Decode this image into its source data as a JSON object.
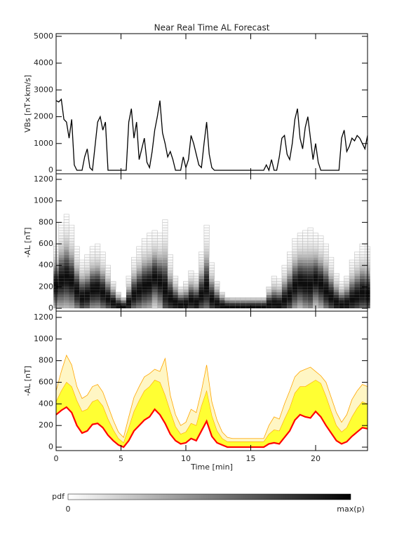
{
  "chart_data": [
    {
      "type": "line",
      "title": "Near Real Time AL Forecast",
      "ylabel": "VBs [nT×km/s]",
      "color": "#000000",
      "xlim": [
        0,
        24
      ],
      "xticks": [
        0,
        5,
        10,
        15,
        20
      ],
      "ylim": [
        -130,
        5100
      ],
      "yticks": [
        0,
        1000,
        2000,
        3000,
        4000,
        5000
      ],
      "x": [
        0,
        0.2,
        0.4,
        0.6,
        0.8,
        1,
        1.2,
        1.4,
        1.6,
        1.8,
        2,
        2.2,
        2.4,
        2.6,
        2.8,
        3,
        3.2,
        3.4,
        3.6,
        3.8,
        4,
        4.2,
        4.4,
        4.6,
        4.8,
        5,
        5.2,
        5.4,
        5.6,
        5.8,
        6,
        6.2,
        6.4,
        6.6,
        6.8,
        7,
        7.2,
        7.4,
        7.6,
        7.8,
        8,
        8.2,
        8.4,
        8.6,
        8.8,
        9,
        9.2,
        9.4,
        9.6,
        9.8,
        10,
        10.2,
        10.4,
        10.6,
        10.8,
        11,
        11.2,
        11.4,
        11.6,
        11.8,
        12,
        12.2,
        12.4,
        12.6,
        12.8,
        13,
        13.2,
        13.4,
        13.6,
        13.8,
        14,
        14.2,
        14.4,
        14.6,
        14.8,
        15,
        15.2,
        15.4,
        15.6,
        15.8,
        16,
        16.2,
        16.4,
        16.6,
        16.8,
        17,
        17.2,
        17.4,
        17.6,
        17.8,
        18,
        18.2,
        18.4,
        18.6,
        18.8,
        19,
        19.2,
        19.4,
        19.6,
        19.8,
        20,
        20.2,
        20.4,
        20.6,
        20.8,
        21,
        21.2,
        21.4,
        21.6,
        21.8,
        22,
        22.2,
        22.4,
        22.6,
        22.8,
        23,
        23.2,
        23.4,
        23.6,
        23.8,
        24
      ],
      "values": [
        2600,
        2550,
        2650,
        1900,
        1800,
        1200,
        1900,
        200,
        0,
        0,
        0,
        500,
        800,
        100,
        0,
        900,
        1800,
        2000,
        1500,
        1800,
        0,
        0,
        0,
        0,
        0,
        0,
        0,
        0,
        1800,
        2300,
        1200,
        1800,
        400,
        800,
        1200,
        300,
        100,
        700,
        1500,
        2000,
        2600,
        1400,
        1000,
        500,
        700,
        400,
        0,
        0,
        0,
        500,
        100,
        400,
        1300,
        1000,
        600,
        200,
        100,
        1000,
        1800,
        600,
        100,
        0,
        0,
        0,
        0,
        0,
        0,
        0,
        0,
        0,
        0,
        0,
        0,
        0,
        0,
        0,
        0,
        0,
        0,
        0,
        0,
        200,
        0,
        400,
        0,
        0,
        500,
        1200,
        1300,
        600,
        400,
        1000,
        1900,
        2300,
        1200,
        800,
        1600,
        2000,
        1200,
        400,
        1000,
        300,
        0,
        0,
        0,
        0,
        0,
        0,
        0,
        0,
        1200,
        1500,
        700,
        900,
        1200,
        1100,
        1300,
        1200,
        1000,
        800,
        1300
      ]
    },
    {
      "type": "heatmap",
      "ylabel": "-AL [nT]",
      "color": "#000000",
      "xlim": [
        0,
        24
      ],
      "xticks": [
        0,
        5,
        10,
        15,
        20
      ],
      "ylim": [
        -26,
        1252
      ],
      "yticks": [
        0,
        200,
        400,
        600,
        800,
        1000,
        1200
      ],
      "x": [
        0,
        0.4,
        0.8,
        1.2,
        1.6,
        2,
        2.4,
        2.8,
        3.2,
        3.6,
        4,
        4.4,
        4.8,
        5.2,
        5.6,
        6,
        6.4,
        6.8,
        7.2,
        7.6,
        8,
        8.4,
        8.8,
        9.2,
        9.6,
        10,
        10.4,
        10.8,
        11.2,
        11.6,
        12,
        12.4,
        12.8,
        13.2,
        13.6,
        14,
        14.4,
        14.8,
        15.2,
        15.6,
        16,
        16.4,
        16.8,
        17.2,
        17.6,
        18,
        18.4,
        18.8,
        19.2,
        19.6,
        20,
        20.4,
        20.8,
        21.2,
        21.6,
        22,
        22.4,
        22.8,
        23.2,
        23.6,
        24
      ],
      "peak": [
        200,
        250,
        280,
        240,
        150,
        90,
        110,
        160,
        170,
        130,
        80,
        40,
        10,
        0,
        40,
        110,
        150,
        190,
        210,
        270,
        230,
        160,
        80,
        40,
        20,
        30,
        60,
        40,
        110,
        180,
        70,
        30,
        10,
        0,
        0,
        0,
        0,
        0,
        0,
        0,
        0,
        20,
        30,
        20,
        60,
        110,
        190,
        230,
        210,
        200,
        250,
        210,
        150,
        90,
        40,
        20,
        30,
        70,
        100,
        130,
        120
      ],
      "top": [
        600,
        780,
        860,
        760,
        560,
        450,
        480,
        560,
        580,
        510,
        380,
        250,
        140,
        90,
        280,
        460,
        560,
        650,
        680,
        720,
        700,
        820,
        480,
        300,
        200,
        230,
        350,
        320,
        520,
        760,
        420,
        250,
        140,
        90,
        80,
        80,
        80,
        80,
        80,
        80,
        80,
        200,
        280,
        260,
        400,
        520,
        650,
        700,
        720,
        740,
        700,
        660,
        600,
        460,
        320,
        230,
        300,
        440,
        520,
        580,
        560
      ]
    },
    {
      "type": "band",
      "ylabel": "-AL [nT]",
      "xlabel": "Time [min]",
      "xlim": [
        0,
        24
      ],
      "xticks": [
        0,
        5,
        10,
        15,
        20
      ],
      "ylim": [
        -32,
        1258
      ],
      "yticks": [
        0,
        200,
        400,
        600,
        800,
        1000,
        1200
      ],
      "lower_color": "#ff0000",
      "upper_color": "#ffff33",
      "max_color": "#ffa500",
      "x": [
        0,
        0.4,
        0.8,
        1.2,
        1.6,
        2,
        2.4,
        2.8,
        3.2,
        3.6,
        4,
        4.4,
        4.8,
        5.2,
        5.6,
        6,
        6.4,
        6.8,
        7.2,
        7.6,
        8,
        8.4,
        8.8,
        9.2,
        9.6,
        10,
        10.4,
        10.8,
        11.2,
        11.6,
        12,
        12.4,
        12.8,
        13.2,
        13.6,
        14,
        14.4,
        14.8,
        15.2,
        15.6,
        16,
        16.4,
        16.8,
        17.2,
        17.6,
        18,
        18.4,
        18.8,
        19.2,
        19.6,
        20,
        20.4,
        20.8,
        21.2,
        21.6,
        22,
        22.4,
        22.8,
        23.2,
        23.6,
        24
      ],
      "lower": [
        300,
        340,
        370,
        320,
        200,
        130,
        150,
        210,
        220,
        180,
        110,
        60,
        20,
        0,
        60,
        150,
        200,
        250,
        280,
        350,
        300,
        220,
        120,
        60,
        30,
        40,
        80,
        60,
        150,
        240,
        100,
        40,
        20,
        0,
        0,
        0,
        0,
        0,
        0,
        0,
        0,
        30,
        40,
        30,
        90,
        150,
        250,
        300,
        280,
        270,
        330,
        280,
        200,
        130,
        60,
        30,
        50,
        100,
        140,
        180,
        170
      ],
      "upper": [
        420,
        520,
        600,
        560,
        430,
        330,
        350,
        420,
        440,
        380,
        260,
        160,
        80,
        40,
        180,
        330,
        430,
        520,
        560,
        620,
        600,
        480,
        330,
        190,
        120,
        140,
        220,
        200,
        380,
        520,
        290,
        150,
        80,
        50,
        50,
        50,
        50,
        50,
        50,
        50,
        50,
        120,
        160,
        150,
        260,
        360,
        500,
        560,
        560,
        590,
        620,
        590,
        470,
        330,
        200,
        140,
        180,
        280,
        360,
        420,
        400
      ],
      "max": [
        520,
        700,
        850,
        760,
        560,
        450,
        480,
        560,
        580,
        510,
        380,
        250,
        140,
        90,
        280,
        460,
        560,
        650,
        680,
        720,
        700,
        820,
        480,
        300,
        200,
        230,
        350,
        320,
        520,
        760,
        420,
        250,
        140,
        90,
        80,
        80,
        80,
        80,
        80,
        80,
        80,
        200,
        280,
        260,
        400,
        520,
        650,
        700,
        720,
        740,
        700,
        660,
        600,
        460,
        320,
        230,
        300,
        440,
        520,
        580,
        560
      ]
    }
  ],
  "colorbar": {
    "label": "pdf",
    "min_label": "0",
    "max_label": "max(p)"
  }
}
